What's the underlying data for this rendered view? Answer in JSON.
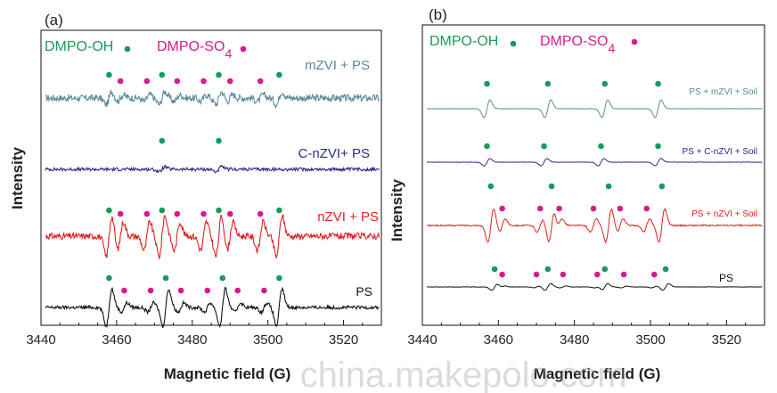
{
  "chart_data": [
    {
      "panel": "(a)",
      "type": "line",
      "xlabel": "Magnetic field (G)",
      "ylabel": "Intensity",
      "xlim": [
        3440,
        3530
      ],
      "xticks": [
        "3440",
        "3460",
        "3480",
        "3500",
        "3520"
      ],
      "legend": [
        {
          "label": "DMPO-OH",
          "marker": "•",
          "color": "#1a9a5a"
        },
        {
          "label": "DMPO-SO",
          "sub": "4",
          "marker": "•",
          "color": "#d81b8c"
        }
      ],
      "series": [
        {
          "name": "mZVI + PS",
          "color": "#5a8a9a",
          "hfs_oh": [
            3458,
            3472,
            3487,
            3503
          ],
          "hfs_so4": [
            3461,
            3468,
            3476,
            3483,
            3490,
            3498
          ],
          "amp_oh": 0.5,
          "amp_so4": 0.25,
          "noise": 0.35
        },
        {
          "name": "C-nZVI+ PS",
          "color": "#2a2a8a",
          "hfs_oh": [
            3472,
            3487
          ],
          "hfs_so4": [],
          "amp_oh": 0.3,
          "amp_so4": 0,
          "noise": 0.25
        },
        {
          "name": "nZVI + PS",
          "color": "#e02020",
          "hfs_oh": [
            3458,
            3472,
            3487,
            3503
          ],
          "hfs_so4": [
            3461,
            3468,
            3476,
            3483,
            3490,
            3498
          ],
          "amp_oh": 1.0,
          "amp_so4": 0.7,
          "noise": 0.2
        },
        {
          "name": "PS",
          "color": "#111111",
          "hfs_oh": [
            3458,
            3473,
            3488,
            3503
          ],
          "hfs_so4": [
            3462,
            3469,
            3477,
            3484,
            3492,
            3499
          ],
          "amp_oh": 1.0,
          "amp_so4": 0.25,
          "noise": 0.12
        }
      ]
    },
    {
      "panel": "(b)",
      "type": "line",
      "xlabel": "Magnetic field (G)",
      "ylabel": "Intensity",
      "xlim": [
        3440,
        3530
      ],
      "xticks": [
        "3440",
        "3460",
        "3480",
        "3500",
        "3520"
      ],
      "legend": [
        {
          "label": "DMPO-OH",
          "marker": "•",
          "color": "#1a9a5a"
        },
        {
          "label": "DMPO-SO",
          "sub": "4",
          "marker": "•",
          "color": "#d81b8c"
        }
      ],
      "series": [
        {
          "name": "PS + mZVI + Soil",
          "color": "#5a8a9a",
          "hfs_oh": [
            3457,
            3473,
            3488,
            3502
          ],
          "hfs_so4": [],
          "amp_oh": 0.8,
          "amp_so4": 0,
          "noise": 0.02
        },
        {
          "name": "PS + C-nZVI + Soil",
          "color": "#2a2a8a",
          "hfs_oh": [
            3457,
            3472,
            3487,
            3502
          ],
          "hfs_so4": [],
          "amp_oh": 0.5,
          "amp_so4": 0,
          "noise": 0.03
        },
        {
          "name": "PS + nZVI + Soil",
          "color": "#e02020",
          "hfs_oh": [
            3458,
            3474,
            3489,
            3503
          ],
          "hfs_so4": [
            3461,
            3471,
            3476,
            3485,
            3492,
            3499
          ],
          "amp_oh": 1.0,
          "amp_so4": 0.4,
          "noise": 0.05
        },
        {
          "name": "PS",
          "color": "#111111",
          "hfs_oh": [
            3459,
            3473,
            3488,
            3504
          ],
          "hfs_so4": [
            3461,
            3470,
            3477,
            3486,
            3493,
            3501
          ],
          "amp_oh": 0.45,
          "amp_so4": 0.12,
          "noise": 0.03
        }
      ]
    }
  ],
  "watermark": "china.makepolo.com"
}
